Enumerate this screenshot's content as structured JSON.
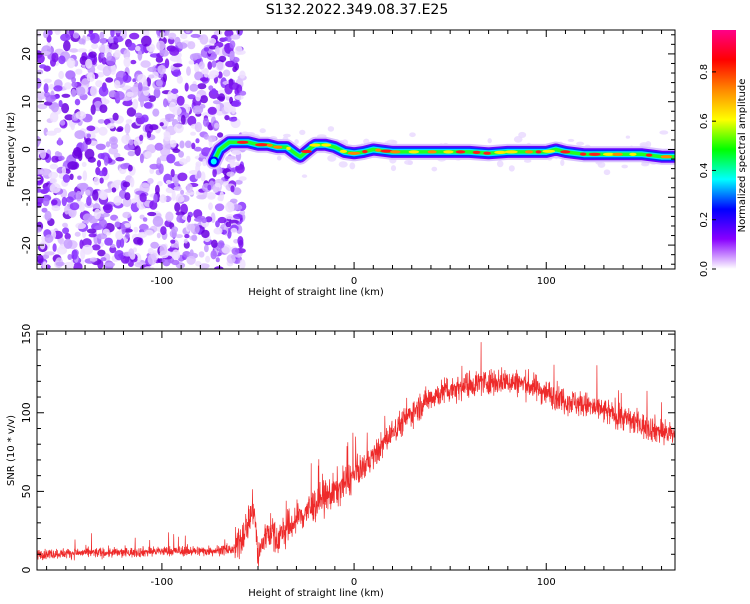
{
  "title": "S132.2022.349.08.37.E25",
  "chart_data": [
    {
      "type": "heatmap",
      "name": "spectrogram",
      "title": "S132.2022.349.08.37.E25",
      "xlabel": "Height of straight line (km)",
      "ylabel": "Frequency (Hz)",
      "xlim": [
        -165,
        167
      ],
      "ylim": [
        -25,
        25
      ],
      "xticks": [
        -100,
        0,
        100
      ],
      "yticks": [
        -20,
        -10,
        0,
        10,
        20
      ],
      "noise_region_x": [
        -165,
        -62
      ],
      "signal_track": {
        "x": [
          -73,
          -70,
          -65,
          -60,
          -55,
          -50,
          -45,
          -40,
          -35,
          -30,
          -28,
          -25,
          -22,
          -20,
          -15,
          -10,
          -5,
          0,
          5,
          10,
          20,
          30,
          40,
          50,
          60,
          70,
          80,
          90,
          100,
          105,
          110,
          120,
          130,
          140,
          150,
          160,
          167
        ],
        "freq": [
          -2.5,
          0,
          1.5,
          1.5,
          1.5,
          1,
          1,
          0.5,
          0.5,
          -1,
          -1.5,
          -0.5,
          0.5,
          1,
          1,
          0.5,
          -0.5,
          -0.8,
          -0.5,
          0,
          -0.5,
          -0.5,
          -0.5,
          -0.5,
          -0.5,
          -0.8,
          -0.5,
          -0.5,
          -0.5,
          0,
          -0.5,
          -1,
          -1,
          -1,
          -1,
          -1.5,
          -1.5
        ]
      },
      "colorbar": {
        "label": "Normalized spectral amplitude",
        "ticks": [
          0.0,
          0.2,
          0.4,
          0.6,
          0.8
        ],
        "tick_labels": [
          "0.0",
          "0.2",
          "0.4",
          "0.6",
          "0.8"
        ],
        "range": [
          0,
          0.97
        ],
        "colors": [
          "#ffffff",
          "#8800ff",
          "#0000ff",
          "#00ffff",
          "#00ff00",
          "#ffff00",
          "#ff8800",
          "#ff0000",
          "#ff0088"
        ]
      }
    },
    {
      "type": "line",
      "name": "snr",
      "xlabel": "Height of straight line (km)",
      "ylabel": "SNR (10 * v/v)",
      "xlim": [
        -165,
        167
      ],
      "ylim": [
        0,
        152
      ],
      "xticks": [
        -100,
        0,
        100
      ],
      "yticks": [
        0,
        50,
        100,
        150
      ],
      "series": [
        {
          "name": "SNR",
          "color": "#ee2a2a",
          "trend": {
            "x": [
              -165,
              -140,
              -120,
              -100,
              -80,
              -62,
              -58,
              -52,
              -50,
              -45,
              -40,
              -30,
              -20,
              -10,
              0,
              10,
              20,
              30,
              40,
              50,
              60,
              70,
              80,
              90,
              100,
              110,
              120,
              130,
              140,
              150,
              160,
              167
            ],
            "y": [
              10,
              11,
              11,
              12,
              12,
              13,
              22,
              40,
              8,
              26,
              20,
              32,
              42,
              50,
              60,
              72,
              88,
              100,
              110,
              115,
              118,
              120,
              120,
              118,
              113,
              108,
              105,
              101,
              97,
              92,
              88,
              86
            ]
          }
        }
      ]
    }
  ]
}
